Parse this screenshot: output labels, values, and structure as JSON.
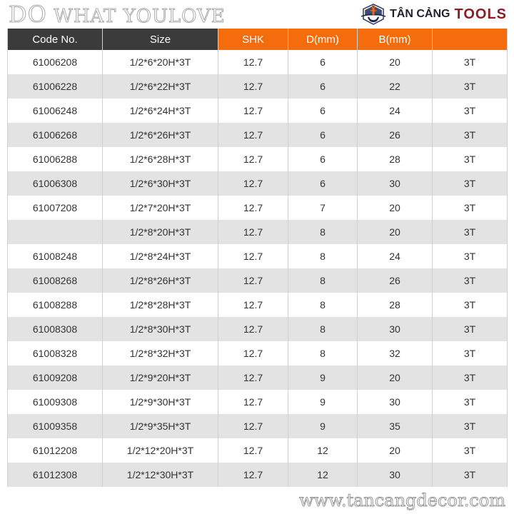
{
  "table": {
    "headers": [
      "Code No.",
      "Size",
      "SHK",
      "D(mm)",
      "B(mm)",
      ""
    ],
    "rows": [
      [
        "61006208",
        "1/2*6*20H*3T",
        "12.7",
        "6",
        "20",
        "3T"
      ],
      [
        "61006228",
        "1/2*6*22H*3T",
        "12.7",
        "6",
        "22",
        "3T"
      ],
      [
        "61006248",
        "1/2*6*24H*3T",
        "12.7",
        "6",
        "24",
        "3T"
      ],
      [
        "61006268",
        "1/2*6*26H*3T",
        "12.7",
        "6",
        "26",
        "3T"
      ],
      [
        "61006288",
        "1/2*6*28H*3T",
        "12.7",
        "6",
        "28",
        "3T"
      ],
      [
        "61006308",
        "1/2*6*30H*3T",
        "12.7",
        "6",
        "30",
        "3T"
      ],
      [
        "61007208",
        "1/2*7*20H*3T",
        "12.7",
        "7",
        "20",
        "3T"
      ],
      [
        "",
        "1/2*8*20H*3T",
        "12.7",
        "8",
        "20",
        "3T"
      ],
      [
        "61008248",
        "1/2*8*24H*3T",
        "12.7",
        "8",
        "24",
        "3T"
      ],
      [
        "61008268",
        "1/2*8*26H*3T",
        "12.7",
        "8",
        "26",
        "3T"
      ],
      [
        "61008288",
        "1/2*8*28H*3T",
        "12.7",
        "8",
        "28",
        "3T"
      ],
      [
        "61008308",
        "1/2*8*30H*3T",
        "12.7",
        "8",
        "30",
        "3T"
      ],
      [
        "61008328",
        "1/2*8*32H*3T",
        "12.7",
        "8",
        "32",
        "3T"
      ],
      [
        "61009208",
        "1/2*9*20H*3T",
        "12.7",
        "9",
        "20",
        "3T"
      ],
      [
        "61009308",
        "1/2*9*30H*3T",
        "12.7",
        "9",
        "30",
        "3T"
      ],
      [
        "61009358",
        "1/2*9*35H*3T",
        "12.7",
        "9",
        "35",
        "3T"
      ],
      [
        "61012208",
        "1/2*12*20H*3T",
        "12.7",
        "12",
        "20",
        "3T"
      ],
      [
        "61012308",
        "1/2*12*30H*3T",
        "12.7",
        "12",
        "30",
        "3T"
      ]
    ]
  },
  "watermark": {
    "line1a": "DO",
    "line1b": " WHAT YOULOVE",
    "url": "www.tancangdecor.com"
  },
  "logo": {
    "line1": "TÂN CẢNG",
    "line2": "TOOLS"
  },
  "colors": {
    "header_dark": "#3b3b3b",
    "header_orange": "#f46c0c",
    "row_alt": "#e3e3e3"
  }
}
